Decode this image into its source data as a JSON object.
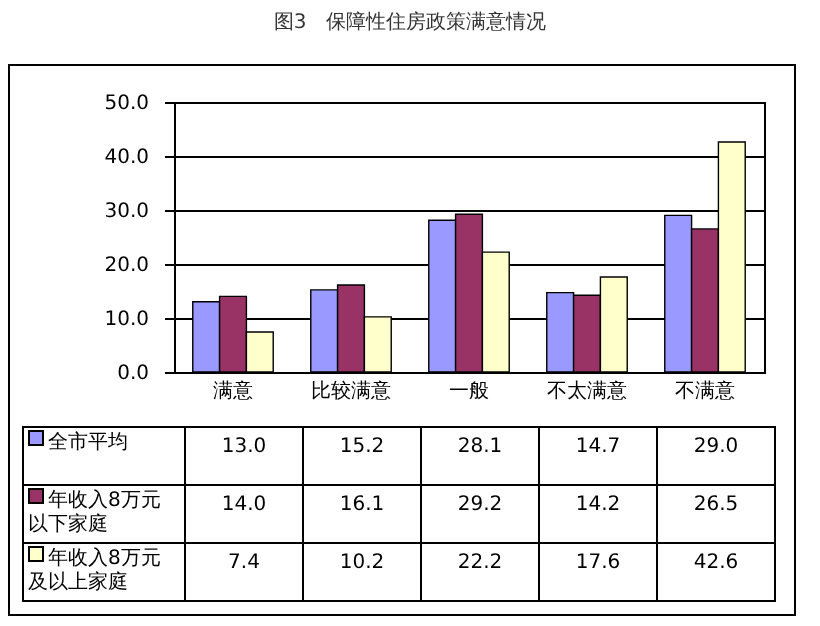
{
  "chart_data": {
    "type": "bar",
    "title": "图3　保障性住房政策满意情况",
    "categories": [
      "满意",
      "比较满意",
      "一般",
      "不太满意",
      "不满意"
    ],
    "series": [
      {
        "name": "全市平均",
        "color": "#9999ff",
        "values": [
          13.0,
          15.2,
          28.1,
          14.7,
          29.0
        ],
        "value_labels": [
          "13.0",
          "15.2",
          "28.1",
          "14.7",
          "29.0"
        ]
      },
      {
        "name": "年收入8万元以下家庭",
        "color": "#993366",
        "values": [
          14.0,
          16.1,
          29.2,
          14.2,
          26.5
        ],
        "value_labels": [
          "14.0",
          "16.1",
          "29.2",
          "14.2",
          "26.5"
        ]
      },
      {
        "name": "年收入8万元及以上家庭",
        "color": "#ffffcc",
        "values": [
          7.4,
          10.2,
          22.2,
          17.6,
          42.6
        ],
        "value_labels": [
          "7.4",
          "10.2",
          "22.2",
          "17.6",
          "42.6"
        ]
      }
    ],
    "ylim": [
      0,
      50
    ],
    "yticks": [
      {
        "value": 0,
        "label": "0.0"
      },
      {
        "value": 10,
        "label": "10.0"
      },
      {
        "value": 20,
        "label": "20.0"
      },
      {
        "value": 30,
        "label": "30.0"
      },
      {
        "value": 40,
        "label": "40.0"
      },
      {
        "value": 50,
        "label": "50.0"
      }
    ],
    "grid": "y",
    "legend": "bottom left"
  }
}
